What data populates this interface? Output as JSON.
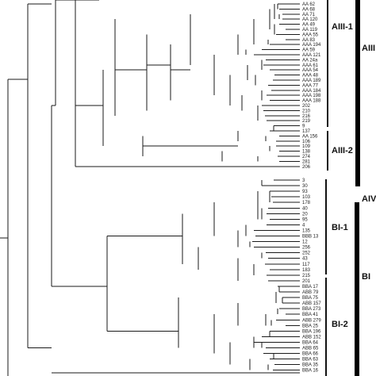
{
  "leaves_upper": [
    "AA 62",
    "AA 68",
    "AA 71",
    "AA 120",
    "AA 49",
    "AA 119",
    "AAA 55",
    "AA 83",
    "AAA 194",
    "AA 59",
    "AAA 121",
    "AA 24a",
    "AAA 61",
    "AAA 54",
    "AAA 48",
    "AAA 189",
    "AAA 77",
    "AAA 184",
    "AAA 198",
    "AAA 188",
    "202",
    "210",
    "216",
    "219",
    "9",
    "137",
    "AA 156",
    "106",
    "109",
    "138",
    "274",
    "281",
    "206"
  ],
  "leaves_lower": [
    "3",
    "30",
    "93",
    "103",
    "178",
    "40",
    "20",
    "95",
    "4",
    "135",
    "BBB 13",
    "12",
    "256",
    "252",
    "43",
    "117",
    "183",
    "215",
    "201",
    "BBA 17",
    "ABB 79",
    "BBA 75",
    "ABB 157",
    "BBA 273",
    "BBA 41",
    "ABB 279",
    "BBA 25",
    "BBA 196",
    "ABB 152",
    "BBA 64",
    "ABB 65",
    "BBA 66",
    "BBA 63",
    "BBA 35",
    "BBA 16"
  ],
  "groups": {
    "aiii": "AIII",
    "aiii1": "AIII-1",
    "aiii2": "AIII-2",
    "aiv": "AIV",
    "bi": "BI",
    "bi1": "BI-1",
    "bi2": "BI-2"
  }
}
